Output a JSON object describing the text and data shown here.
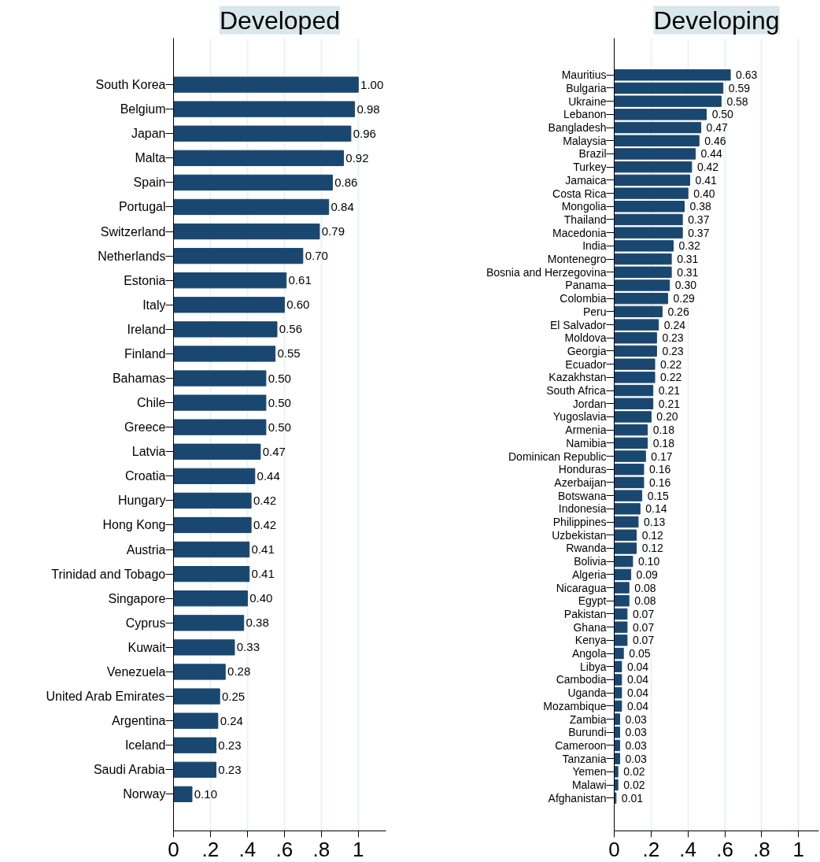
{
  "chart_data": [
    {
      "type": "bar",
      "orientation": "horizontal",
      "title": "Developed",
      "grid": "x",
      "color": "#1a476f",
      "categories": [
        "South Korea",
        "Belgium",
        "Japan",
        "Malta",
        "Spain",
        "Portugal",
        "Switzerland",
        "Netherlands",
        "Estonia",
        "Italy",
        "Ireland",
        "Finland",
        "Bahamas",
        "Chile",
        "Greece",
        "Latvia",
        "Croatia",
        "Hungary",
        "Hong Kong",
        "Austria",
        "Trinidad and Tobago",
        "Singapore",
        "Cyprus",
        "Kuwait",
        "Venezuela",
        "United Arab Emirates",
        "Argentina",
        "Iceland",
        "Saudi Arabia",
        "Norway"
      ],
      "values": [
        1.0,
        0.98,
        0.96,
        0.92,
        0.86,
        0.84,
        0.79,
        0.7,
        0.61,
        0.6,
        0.56,
        0.55,
        0.5,
        0.5,
        0.5,
        0.47,
        0.44,
        0.42,
        0.42,
        0.41,
        0.41,
        0.4,
        0.38,
        0.33,
        0.28,
        0.25,
        0.24,
        0.23,
        0.23,
        0.1
      ],
      "value_labels": [
        "1.00",
        "0.98",
        "0.96",
        "0.92",
        "0.86",
        "0.84",
        "0.79",
        "0.70",
        "0.61",
        "0.60",
        "0.56",
        "0.55",
        "0.50",
        "0.50",
        "0.50",
        "0.47",
        "0.44",
        "0.42",
        "0.42",
        "0.41",
        "0.41",
        "0.40",
        "0.38",
        "0.33",
        "0.28",
        "0.25",
        "0.24",
        "0.23",
        "0.23",
        "0.10"
      ],
      "xlim": [
        0,
        1.15
      ],
      "xticks": [
        0,
        {
          "value": 0.2,
          "label": ".2"
        },
        {
          "value": 0.4,
          "label": ".4"
        },
        {
          "value": 0.6,
          "label": ".6"
        },
        {
          "value": 0.8,
          "label": ".8"
        },
        1
      ]
    },
    {
      "type": "bar",
      "orientation": "horizontal",
      "title": "Developing",
      "grid": "x",
      "color": "#1a476f",
      "categories": [
        "Mauritius",
        "Bulgaria",
        "Ukraine",
        "Lebanon",
        "Bangladesh",
        "Malaysia",
        "Brazil",
        "Turkey",
        "Jamaica",
        "Costa Rica",
        "Mongolia",
        "Thailand",
        "Macedonia",
        "India",
        "Montenegro",
        "Bosnia and Herzegovina",
        "Panama",
        "Colombia",
        "Peru",
        "El Salvador",
        "Moldova",
        "Georgia",
        "Ecuador",
        "Kazakhstan",
        "South Africa",
        "Jordan",
        "Yugoslavia",
        "Armenia",
        "Namibia",
        "Dominican Republic",
        "Honduras",
        "Azerbaijan",
        "Botswana",
        "Indonesia",
        "Philippines",
        "Uzbekistan",
        "Rwanda",
        "Bolivia",
        "Algeria",
        "Nicaragua",
        "Egypt",
        "Pakistan",
        "Ghana",
        "Kenya",
        "Angola",
        "Libya",
        "Cambodia",
        "Uganda",
        "Mozambique",
        "Zambia",
        "Burundi",
        "Cameroon",
        "Tanzania",
        "Yemen",
        "Malawi",
        "Afghanistan"
      ],
      "values": [
        0.63,
        0.59,
        0.58,
        0.5,
        0.47,
        0.46,
        0.44,
        0.42,
        0.41,
        0.4,
        0.38,
        0.37,
        0.37,
        0.32,
        0.31,
        0.31,
        0.3,
        0.29,
        0.26,
        0.24,
        0.23,
        0.23,
        0.22,
        0.22,
        0.21,
        0.21,
        0.2,
        0.18,
        0.18,
        0.17,
        0.16,
        0.16,
        0.15,
        0.14,
        0.13,
        0.12,
        0.12,
        0.1,
        0.09,
        0.08,
        0.08,
        0.07,
        0.07,
        0.07,
        0.05,
        0.04,
        0.04,
        0.04,
        0.04,
        0.03,
        0.03,
        0.03,
        0.03,
        0.02,
        0.02,
        0.01
      ],
      "value_labels": [
        "0.63",
        "0.59",
        "0.58",
        "0.50",
        "0.47",
        "0.46",
        "0.44",
        "0.42",
        "0.41",
        "0.40",
        "0.38",
        "0.37",
        "0.37",
        "0.32",
        "0.31",
        "0.31",
        "0.30",
        "0.29",
        "0.26",
        "0.24",
        "0.23",
        "0.23",
        "0.22",
        "0.22",
        "0.21",
        "0.21",
        "0.20",
        "0.18",
        "0.18",
        "0.17",
        "0.16",
        "0.16",
        "0.15",
        "0.14",
        "0.13",
        "0.12",
        "0.12",
        "0.10",
        "0.09",
        "0.08",
        "0.08",
        "0.07",
        "0.07",
        "0.07",
        "0.05",
        "0.04",
        "0.04",
        "0.04",
        "0.04",
        "0.03",
        "0.03",
        "0.03",
        "0.03",
        "0.02",
        "0.02",
        "0.01"
      ],
      "xlim": [
        0,
        1.11
      ],
      "xticks": [
        0,
        {
          "value": 0.2,
          "label": ".2"
        },
        {
          "value": 0.4,
          "label": ".4"
        },
        {
          "value": 0.6,
          "label": ".6"
        },
        {
          "value": 0.8,
          "label": ".8"
        },
        1
      ]
    }
  ]
}
